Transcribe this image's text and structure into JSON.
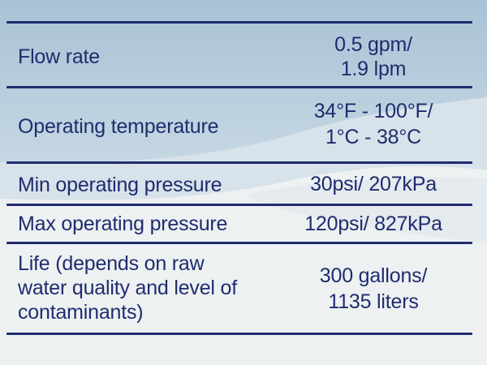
{
  "specs": {
    "rows": [
      {
        "label": "Flow rate",
        "value_line1": "0.5 gpm/",
        "value_line2": "1.9 lpm"
      },
      {
        "label": "Operating temperature",
        "value_line1": "34°F - 100°F/",
        "value_line2": "1°C - 38°C"
      },
      {
        "label": "Min operating pressure",
        "value_line1": "30psi/ 207kPa"
      },
      {
        "label": "Max operating pressure",
        "value_line1": "120psi/ 827kPa"
      },
      {
        "label_line1": "Life (depends on raw",
        "label_line2": "water quality and level of",
        "label_line3": "contaminants)",
        "value_line1": "300 gallons/",
        "value_line2": "1135 liters"
      }
    ]
  },
  "colors": {
    "text": "#1f2c6e",
    "rule": "#1f2c6e",
    "background_light": "#eef1f2",
    "background_wave": "#bcd0de"
  }
}
